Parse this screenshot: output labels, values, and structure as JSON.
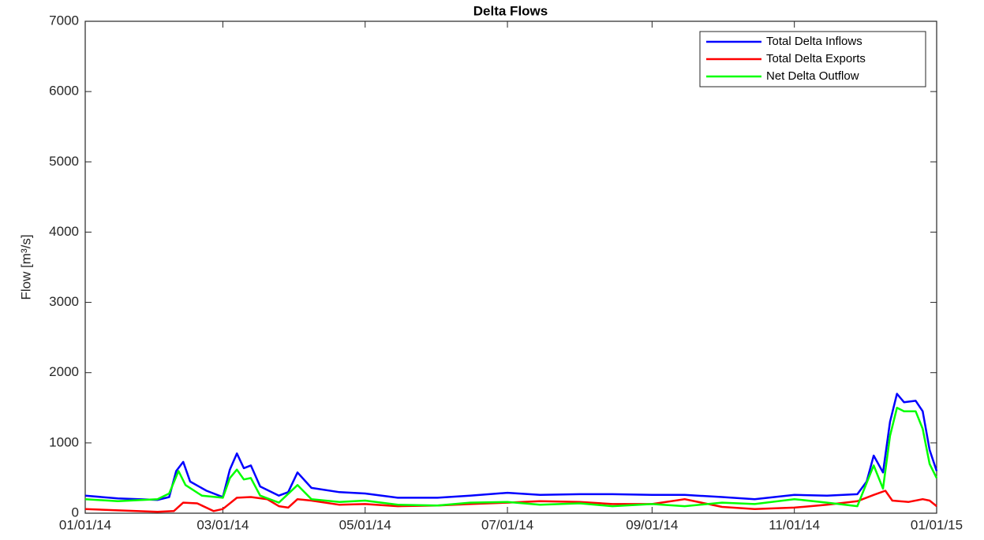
{
  "chart_data": {
    "type": "line",
    "title": "Delta Flows",
    "y_label": "Flow [m³/s]",
    "xlim": [
      "2014-01-01",
      "2015-01-01"
    ],
    "xticks": [
      {
        "value": "2014-01-01",
        "label": "01/01/14"
      },
      {
        "value": "2014-03-01",
        "label": "03/01/14"
      },
      {
        "value": "2014-05-01",
        "label": "05/01/14"
      },
      {
        "value": "2014-07-01",
        "label": "07/01/14"
      },
      {
        "value": "2014-09-01",
        "label": "09/01/14"
      },
      {
        "value": "2014-11-01",
        "label": "11/01/14"
      },
      {
        "value": "2015-01-01",
        "label": "01/01/15"
      }
    ],
    "ylim": [
      0,
      7000
    ],
    "yticks": [
      0,
      1000,
      2000,
      3000,
      4000,
      5000,
      6000,
      7000
    ],
    "legend": "upper right",
    "series": [
      {
        "name": "Total Delta Inflows",
        "color": "#0000ff",
        "x": [
          "2014-01-01",
          "2014-01-15",
          "2014-02-01",
          "2014-02-06",
          "2014-02-09",
          "2014-02-12",
          "2014-02-15",
          "2014-02-22",
          "2014-03-01",
          "2014-03-04",
          "2014-03-07",
          "2014-03-10",
          "2014-03-13",
          "2014-03-17",
          "2014-03-25",
          "2014-03-29",
          "2014-04-02",
          "2014-04-08",
          "2014-04-20",
          "2014-05-01",
          "2014-05-15",
          "2014-06-01",
          "2014-06-15",
          "2014-07-01",
          "2014-07-15",
          "2014-08-01",
          "2014-08-15",
          "2014-09-01",
          "2014-09-15",
          "2014-10-01",
          "2014-10-15",
          "2014-11-01",
          "2014-11-15",
          "2014-11-28",
          "2014-12-02",
          "2014-12-05",
          "2014-12-09",
          "2014-12-12",
          "2014-12-15",
          "2014-12-18",
          "2014-12-23",
          "2014-12-26",
          "2014-12-29",
          "2015-01-01"
        ],
        "values": [
          250,
          210,
          190,
          230,
          600,
          730,
          450,
          320,
          230,
          620,
          850,
          640,
          680,
          380,
          250,
          300,
          580,
          360,
          300,
          280,
          220,
          220,
          250,
          290,
          260,
          270,
          270,
          260,
          260,
          230,
          200,
          260,
          250,
          270,
          450,
          820,
          580,
          1300,
          1700,
          1580,
          1600,
          1450,
          900,
          600
        ]
      },
      {
        "name": "Total Delta Exports",
        "color": "#ff0000",
        "x": [
          "2014-01-01",
          "2014-01-15",
          "2014-02-01",
          "2014-02-08",
          "2014-02-12",
          "2014-02-18",
          "2014-02-25",
          "2014-03-01",
          "2014-03-07",
          "2014-03-13",
          "2014-03-20",
          "2014-03-25",
          "2014-03-29",
          "2014-04-02",
          "2014-04-08",
          "2014-04-20",
          "2014-05-01",
          "2014-05-15",
          "2014-06-01",
          "2014-06-15",
          "2014-07-01",
          "2014-07-15",
          "2014-08-01",
          "2014-08-15",
          "2014-09-01",
          "2014-09-15",
          "2014-10-01",
          "2014-10-15",
          "2014-11-01",
          "2014-11-15",
          "2014-11-28",
          "2014-12-05",
          "2014-12-10",
          "2014-12-13",
          "2014-12-20",
          "2014-12-26",
          "2014-12-29",
          "2015-01-01"
        ],
        "values": [
          60,
          40,
          20,
          30,
          150,
          140,
          30,
          60,
          220,
          230,
          200,
          100,
          80,
          200,
          180,
          120,
          130,
          100,
          110,
          130,
          150,
          170,
          160,
          130,
          130,
          200,
          90,
          60,
          80,
          120,
          170,
          260,
          320,
          180,
          160,
          200,
          180,
          100
        ]
      },
      {
        "name": "Net Delta Outflow",
        "color": "#00ff00",
        "x": [
          "2014-01-01",
          "2014-01-15",
          "2014-02-01",
          "2014-02-06",
          "2014-02-10",
          "2014-02-13",
          "2014-02-20",
          "2014-03-01",
          "2014-03-04",
          "2014-03-07",
          "2014-03-10",
          "2014-03-13",
          "2014-03-17",
          "2014-03-25",
          "2014-04-02",
          "2014-04-08",
          "2014-04-20",
          "2014-05-01",
          "2014-05-15",
          "2014-06-01",
          "2014-06-15",
          "2014-07-01",
          "2014-07-15",
          "2014-08-01",
          "2014-08-15",
          "2014-09-01",
          "2014-09-15",
          "2014-10-01",
          "2014-10-15",
          "2014-11-01",
          "2014-11-15",
          "2014-11-28",
          "2014-12-05",
          "2014-12-09",
          "2014-12-12",
          "2014-12-15",
          "2014-12-18",
          "2014-12-23",
          "2014-12-26",
          "2014-12-29",
          "2015-01-01"
        ],
        "values": [
          200,
          170,
          200,
          280,
          600,
          400,
          250,
          220,
          500,
          620,
          480,
          500,
          250,
          150,
          400,
          200,
          160,
          180,
          120,
          110,
          150,
          160,
          120,
          140,
          100,
          130,
          100,
          150,
          130,
          200,
          150,
          100,
          680,
          350,
          1100,
          1500,
          1450,
          1450,
          1200,
          700,
          500
        ]
      }
    ]
  }
}
